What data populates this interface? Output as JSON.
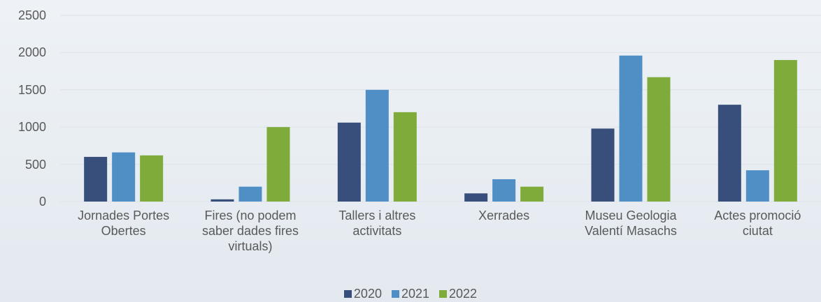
{
  "chart_data": {
    "type": "bar",
    "categories": [
      "Jornades Portes Obertes",
      "Fires (no podem saber dades fires virtuals)",
      "Tallers i altres activitats",
      "Xerrades",
      "Museu Geologia Valentí Masachs",
      "Actes promoció ciutat"
    ],
    "series": [
      {
        "name": "2020",
        "color": "#374f7a",
        "values": [
          600,
          30,
          1060,
          110,
          980,
          1300
        ]
      },
      {
        "name": "2021",
        "color": "#4f8fc6",
        "values": [
          660,
          200,
          1500,
          300,
          1960,
          420
        ]
      },
      {
        "name": "2022",
        "color": "#7fab3a",
        "values": [
          620,
          1000,
          1200,
          200,
          1670,
          1900
        ]
      }
    ],
    "ylim": [
      0,
      2500
    ],
    "yticks": [
      0,
      500,
      1000,
      1500,
      2000,
      2500
    ],
    "grid": true,
    "legend": "bottom"
  }
}
